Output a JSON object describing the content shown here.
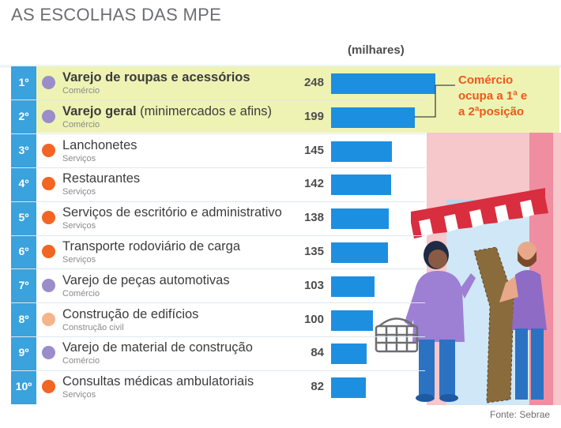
{
  "header": {
    "title": "AS ESCOLHAS DAS MPE",
    "unit_label": "(milhares)"
  },
  "annotation": {
    "line1": "Comércio",
    "line2": "ocupa a 1ª e",
    "line3": "a 2ªposição"
  },
  "footer": {
    "source": "Fonte: Sebrae"
  },
  "colors": {
    "bar": "#1d8fe0",
    "rank_column": "#3aa2dc",
    "highlight": "#eef3b4",
    "annotation": "#ea5a18",
    "comercio": "#9a8dc9",
    "servicos": "#f26522",
    "construcao_civil": "#f6b48a"
  },
  "chart_data": {
    "type": "bar",
    "orientation": "horizontal",
    "title": "AS ESCOLHAS DAS MPE",
    "unit": "(milhares)",
    "categories": [
      "Varejo de roupas e acessórios",
      "Varejo geral (minimercados e afins)",
      "Lanchonetes",
      "Restaurantes",
      "Serviços de escritório e administrativo",
      "Transporte rodoviário de carga",
      "Varejo de peças automotivas",
      "Construção de edifícios",
      "Varejo de material de construção",
      "Consultas médicas ambulatoriais"
    ],
    "values": [
      248,
      199,
      145,
      142,
      138,
      135,
      103,
      100,
      84,
      82
    ],
    "xlim": [
      0,
      248
    ],
    "rows": [
      {
        "rank": "1º",
        "name": "Varejo de roupas e acessórios",
        "name_extra": "",
        "bold": true,
        "category": "Comércio",
        "value": 248,
        "dot": "comercio"
      },
      {
        "rank": "2º",
        "name": "Varejo geral",
        "name_extra": " (minimercados e afins)",
        "bold": true,
        "category": "Comércio",
        "value": 199,
        "dot": "comercio"
      },
      {
        "rank": "3º",
        "name": "Lanchonetes",
        "name_extra": "",
        "bold": false,
        "category": "Serviços",
        "value": 145,
        "dot": "servicos"
      },
      {
        "rank": "4º",
        "name": "Restaurantes",
        "name_extra": "",
        "bold": false,
        "category": "Serviços",
        "value": 142,
        "dot": "servicos"
      },
      {
        "rank": "5º",
        "name": "Serviços de escritório e administrativo",
        "name_extra": "",
        "bold": false,
        "category": "Serviços",
        "value": 138,
        "dot": "servicos"
      },
      {
        "rank": "6º",
        "name": "Transporte rodoviário de carga",
        "name_extra": "",
        "bold": false,
        "category": "Serviços",
        "value": 135,
        "dot": "servicos"
      },
      {
        "rank": "7º",
        "name": "Varejo de peças automotivas",
        "name_extra": "",
        "bold": false,
        "category": "Comércio",
        "value": 103,
        "dot": "comercio"
      },
      {
        "rank": "8º",
        "name": "Construção de edifícios",
        "name_extra": "",
        "bold": false,
        "category": "Construção civil",
        "value": 100,
        "dot": "construcao_civil"
      },
      {
        "rank": "9º",
        "name": "Varejo de material de construção",
        "name_extra": "",
        "bold": false,
        "category": "Comércio",
        "value": 84,
        "dot": "comercio"
      },
      {
        "rank": "10º",
        "name": "Consultas médicas ambulatoriais",
        "name_extra": "",
        "bold": false,
        "category": "Serviços",
        "value": 82,
        "dot": "servicos"
      }
    ]
  }
}
